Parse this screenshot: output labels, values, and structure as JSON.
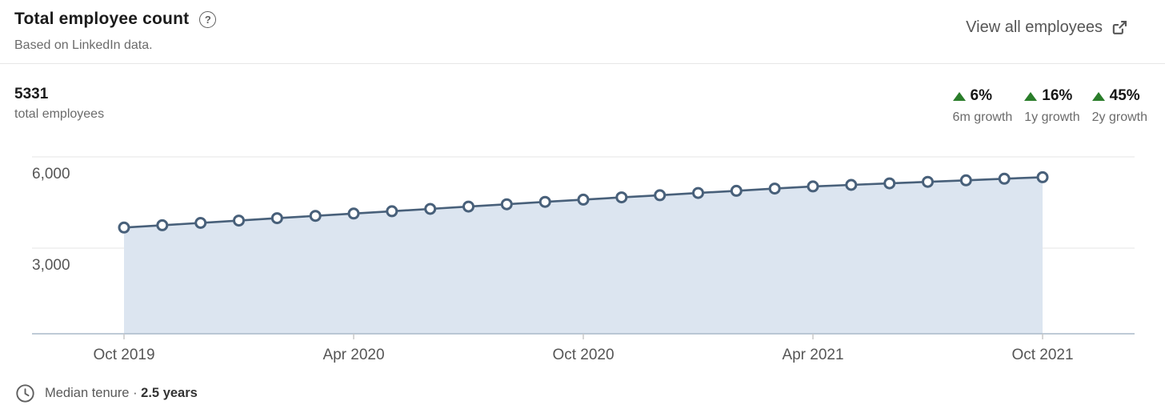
{
  "header": {
    "title": "Total employee count",
    "help_glyph": "?",
    "subtitle": "Based on LinkedIn data.",
    "view_all_label": "View all employees"
  },
  "summary": {
    "total_value": "5331",
    "total_label": "total employees",
    "positive_color": "#2a7d2a",
    "growth_stats": [
      {
        "value": "6%",
        "label": "6m growth",
        "direction": "up"
      },
      {
        "value": "16%",
        "label": "1y growth",
        "direction": "up"
      },
      {
        "value": "45%",
        "label": "2y growth",
        "direction": "up"
      }
    ]
  },
  "chart_data": {
    "type": "area",
    "title": "Total employee count over time",
    "x": [
      "Oct 2019",
      "Nov 2019",
      "Dec 2019",
      "Jan 2020",
      "Feb 2020",
      "Mar 2020",
      "Apr 2020",
      "May 2020",
      "Jun 2020",
      "Jul 2020",
      "Aug 2020",
      "Sep 2020",
      "Oct 2020",
      "Nov 2020",
      "Dec 2020",
      "Jan 2021",
      "Feb 2021",
      "Mar 2021",
      "Apr 2021",
      "May 2021",
      "Jun 2021",
      "Jul 2021",
      "Aug 2021",
      "Sep 2021",
      "Oct 2021"
    ],
    "values": [
      3676,
      3753,
      3830,
      3906,
      3983,
      4060,
      4136,
      4213,
      4290,
      4366,
      4443,
      4520,
      4596,
      4668,
      4740,
      4813,
      4885,
      4957,
      5029,
      5079,
      5130,
      5180,
      5230,
      5281,
      5331
    ],
    "x_tick_indices": [
      0,
      6,
      12,
      18,
      24
    ],
    "x_tick_labels": [
      "Oct 2019",
      "Apr 2020",
      "Oct 2020",
      "Apr 2021",
      "Oct 2021"
    ],
    "y_ticks": [
      6000,
      3000
    ],
    "y_tick_labels": [
      "6,000",
      "3,000"
    ],
    "ylim": [
      0,
      6400
    ],
    "grid": "horizontal",
    "legend": "none",
    "marker": "open-circle",
    "line_color": "#48607a",
    "marker_fill": "#ffffff",
    "fill_color": "#dce5f0",
    "axis_color": "#a9b9c9",
    "grid_color": "#e4e4e4",
    "tick_color": "#c9c9c9",
    "label_color": "#565656"
  },
  "footer": {
    "label": "Median tenure ·",
    "value": "2.5 years"
  }
}
